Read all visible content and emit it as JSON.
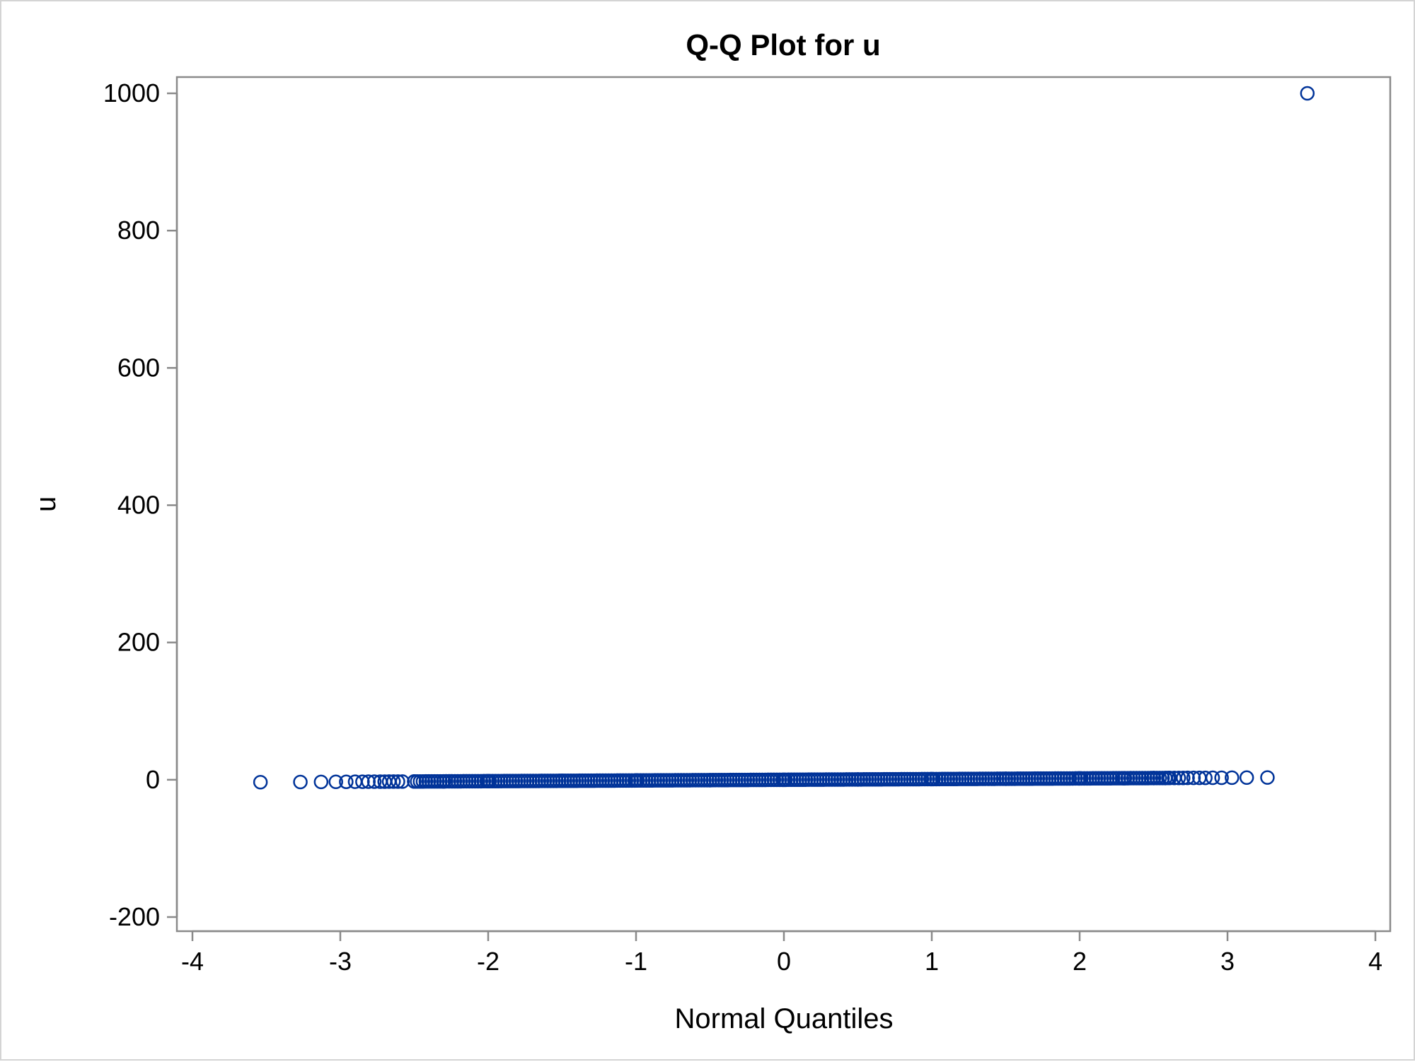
{
  "chart_data": {
    "type": "scatter",
    "title": "Q-Q Plot for u",
    "xlabel": "Normal Quantiles",
    "ylabel": "u",
    "xlim": [
      -4,
      4
    ],
    "ylim": [
      -200,
      1000
    ],
    "xticks": [
      -4,
      -3,
      -2,
      -1,
      0,
      1,
      2,
      3,
      4
    ],
    "yticks": [
      -200,
      0,
      200,
      400,
      600,
      800,
      1000
    ],
    "grid": false,
    "marker": "open-circle",
    "marker_color": "#003399",
    "series": [
      {
        "points": [
          [
            -3.54,
            -3.54
          ],
          [
            -3.27,
            -3.27
          ],
          [
            -3.13,
            -3.13
          ],
          [
            -3.03,
            -3.03
          ],
          [
            -2.96,
            -2.96
          ],
          [
            -2.9,
            -2.9
          ],
          [
            -2.85,
            -2.85
          ],
          [
            -2.81,
            -2.81
          ],
          [
            -2.77,
            -2.77
          ],
          [
            -2.73,
            -2.73
          ],
          [
            -2.7,
            -2.7
          ],
          [
            -2.67,
            -2.67
          ],
          [
            -2.64,
            -2.64
          ],
          [
            -2.61,
            -2.61
          ],
          [
            -2.58,
            -2.58
          ],
          [
            -2.5,
            -2.5
          ],
          [
            -2.3,
            -2.3
          ],
          [
            -2.0,
            -2.0
          ],
          [
            -1.5,
            -1.5
          ],
          [
            -1.0,
            -1.0
          ],
          [
            -0.5,
            -0.5
          ],
          [
            0.0,
            0.0
          ],
          [
            0.5,
            0.5
          ],
          [
            1.0,
            1.0
          ],
          [
            1.5,
            1.5
          ],
          [
            2.0,
            2.0
          ],
          [
            2.3,
            2.3
          ],
          [
            2.5,
            2.5
          ],
          [
            2.58,
            2.58
          ],
          [
            2.61,
            2.61
          ],
          [
            2.64,
            2.64
          ],
          [
            2.67,
            2.67
          ],
          [
            2.7,
            2.7
          ],
          [
            2.73,
            2.73
          ],
          [
            2.77,
            2.77
          ],
          [
            2.81,
            2.81
          ],
          [
            2.85,
            2.85
          ],
          [
            2.9,
            2.9
          ],
          [
            2.96,
            2.96
          ],
          [
            3.03,
            3.03
          ],
          [
            3.13,
            3.13
          ],
          [
            3.27,
            3.27
          ],
          [
            3.54,
            1000
          ]
        ],
        "dense_band": {
          "x_from": -2.5,
          "x_to": 2.6,
          "y_from": -2.5,
          "y_to": 2.6
        }
      }
    ]
  }
}
